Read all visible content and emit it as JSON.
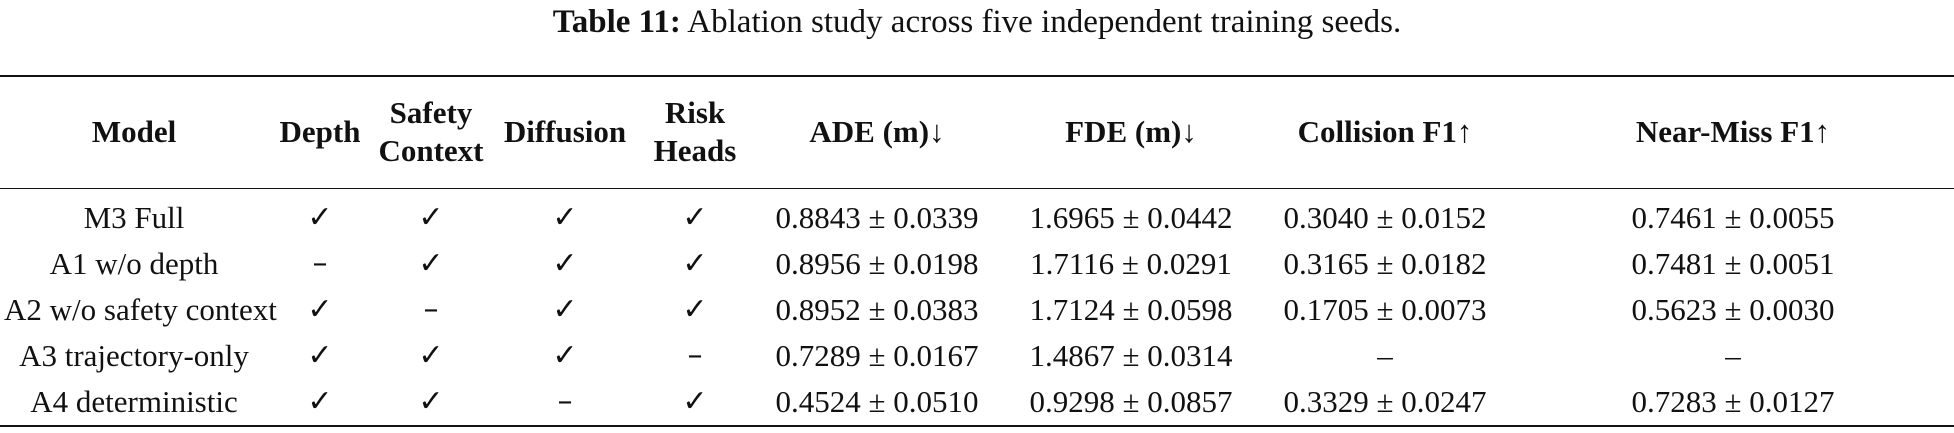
{
  "caption": {
    "label": "Table 11:",
    "text": "Ablation study across five independent training seeds."
  },
  "table": {
    "headers": [
      [
        "Model"
      ],
      [
        "Depth"
      ],
      [
        "Safety",
        "Context"
      ],
      [
        "Diffusion"
      ],
      [
        "Risk",
        "Heads"
      ],
      [
        "ADE (m)↓"
      ],
      [
        "FDE (m)↓"
      ],
      [
        "Collision F1↑"
      ],
      [
        "Near-Miss F1↑"
      ]
    ],
    "rows": [
      [
        "M3 Full",
        "✓",
        "✓",
        "✓",
        "✓",
        "0.8843 ± 0.0339",
        "1.6965 ± 0.0442",
        "0.3040 ± 0.0152",
        "0.7461 ± 0.0055"
      ],
      [
        "A1 w/o depth",
        "–",
        "✓",
        "✓",
        "✓",
        "0.8956 ± 0.0198",
        "1.7116 ± 0.0291",
        "0.3165 ± 0.0182",
        "0.7481 ± 0.0051"
      ],
      [
        "A2 w/o safety context",
        "✓",
        "–",
        "✓",
        "✓",
        "0.8952 ± 0.0383",
        "1.7124 ± 0.0598",
        "0.1705 ± 0.0073",
        "0.5623 ± 0.0030"
      ],
      [
        "A3 trajectory-only",
        "✓",
        "✓",
        "✓",
        "–",
        "0.7289 ± 0.0167",
        "1.4867 ± 0.0314",
        "–",
        "–"
      ],
      [
        "A4 deterministic",
        "✓",
        "✓",
        "–",
        "✓",
        "0.4524 ± 0.0510",
        "0.9298 ± 0.0857",
        "0.3329 ± 0.0247",
        "0.7283 ± 0.0127"
      ]
    ]
  }
}
